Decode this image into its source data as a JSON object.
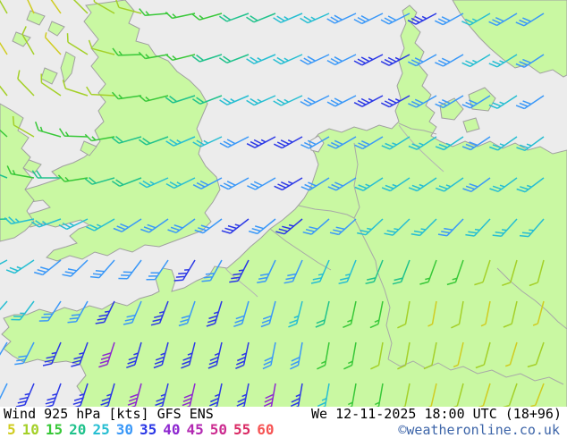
{
  "footer": {
    "title": "Wind 925 hPa [kts] GFS ENS",
    "datetime": "We 12-11-2025 18:00 UTC (18+96)",
    "copyright": "©weatheronline.co.uk",
    "copyright_color": "#3c64a8",
    "text_color": "#000000",
    "scale_values": [
      5,
      10,
      15,
      20,
      25,
      30,
      35,
      40,
      45,
      50,
      55,
      60
    ]
  },
  "map": {
    "sea_color": "#ececec",
    "land_color": "#c9f8a2",
    "coast_color": "#a0a0a0",
    "border_color": "#a8a8a8",
    "river_color": "#b4b4b4",
    "speed_colors": {
      "5": "#d0cc20",
      "10": "#a4d028",
      "15": "#38c838",
      "20": "#20c28c",
      "25": "#26bed2",
      "30": "#3a98f8",
      "35": "#2b38e6",
      "40": "#8e28d0",
      "45": "#b228b2",
      "50": "#cc2c90",
      "55": "#da2a64",
      "60": "#f65454"
    },
    "barb": {
      "staff_len": 26,
      "full_len": 10,
      "half_len": 5.5,
      "tick_step": 4.5,
      "tick_angle": 55,
      "stroke_width": 1.5
    },
    "cols": [
      8,
      38,
      68,
      98,
      128,
      158,
      188,
      218,
      248,
      278,
      308,
      338,
      368,
      398,
      428,
      458,
      488,
      518,
      548,
      578,
      608
    ],
    "rows": [
      15,
      61,
      107,
      153,
      199,
      245,
      291,
      337,
      383,
      429
    ],
    "speeds": [
      [
        10,
        5,
        5,
        10,
        10,
        10,
        15,
        15,
        15,
        20,
        20,
        25,
        25,
        30,
        30,
        30,
        35,
        30,
        25,
        30,
        30
      ],
      [
        5,
        10,
        5,
        10,
        10,
        15,
        15,
        15,
        20,
        20,
        25,
        25,
        30,
        30,
        35,
        35,
        30,
        30,
        25,
        25,
        30
      ],
      [
        10,
        10,
        10,
        10,
        10,
        15,
        15,
        20,
        20,
        25,
        25,
        25,
        30,
        30,
        35,
        35,
        30,
        30,
        30,
        25,
        30
      ],
      [
        15,
        10,
        15,
        15,
        15,
        20,
        20,
        25,
        25,
        30,
        35,
        35,
        30,
        30,
        30,
        25,
        25,
        25,
        30,
        25,
        25
      ],
      [
        20,
        15,
        20,
        15,
        20,
        20,
        25,
        25,
        30,
        30,
        30,
        35,
        30,
        30,
        25,
        25,
        25,
        25,
        30,
        25,
        25
      ],
      [
        20,
        25,
        25,
        25,
        25,
        30,
        30,
        30,
        30,
        35,
        30,
        35,
        30,
        30,
        25,
        25,
        25,
        30,
        25,
        25,
        25
      ],
      [
        25,
        25,
        30,
        30,
        30,
        30,
        30,
        35,
        30,
        35,
        30,
        30,
        25,
        25,
        20,
        20,
        15,
        15,
        10,
        10,
        10
      ],
      [
        25,
        25,
        30,
        30,
        35,
        30,
        35,
        30,
        35,
        30,
        30,
        25,
        20,
        15,
        15,
        10,
        5,
        10,
        5,
        10,
        5
      ],
      [
        30,
        30,
        35,
        35,
        40,
        35,
        35,
        35,
        35,
        35,
        30,
        30,
        15,
        15,
        10,
        10,
        10,
        5,
        10,
        5,
        10
      ],
      [
        30,
        35,
        35,
        35,
        35,
        40,
        35,
        40,
        35,
        35,
        40,
        35,
        25,
        15,
        15,
        10,
        5,
        10,
        5,
        10,
        5
      ]
    ],
    "dirs": [
      [
        240,
        245,
        235,
        225,
        210,
        195,
        175,
        168,
        164,
        160,
        158,
        157,
        156,
        155,
        154,
        153,
        152,
        151,
        150,
        149,
        148
      ],
      [
        238,
        240,
        228,
        212,
        195,
        178,
        170,
        166,
        162,
        159,
        157,
        156,
        155,
        154,
        153,
        152,
        151,
        150,
        149,
        148,
        147
      ],
      [
        232,
        226,
        214,
        198,
        183,
        172,
        166,
        162,
        159,
        157,
        156,
        155,
        154,
        153,
        152,
        151,
        150,
        149,
        148,
        147,
        146
      ],
      [
        222,
        210,
        196,
        182,
        170,
        164,
        160,
        157,
        155,
        153,
        152,
        151,
        150,
        150,
        149,
        148,
        147,
        146,
        146,
        145,
        144
      ],
      [
        202,
        190,
        180,
        171,
        164,
        159,
        156,
        154,
        152,
        151,
        150,
        149,
        148,
        148,
        147,
        146,
        146,
        145,
        144,
        144,
        143
      ],
      [
        178,
        168,
        160,
        154,
        150,
        147,
        145,
        144,
        143,
        142,
        141,
        140,
        139,
        138,
        137,
        136,
        135,
        134,
        133,
        132,
        131
      ],
      [
        152,
        146,
        141,
        136,
        131,
        127,
        124,
        121,
        119,
        117,
        115,
        114,
        113,
        112,
        112,
        111,
        110,
        109,
        108,
        106,
        105
      ],
      [
        131,
        127,
        123,
        119,
        116,
        113,
        111,
        109,
        107,
        106,
        105,
        104,
        103,
        102,
        101,
        100,
        100,
        100,
        101,
        103,
        105
      ],
      [
        121,
        117,
        113,
        110,
        108,
        106,
        105,
        104,
        103,
        102,
        101,
        100,
        100,
        100,
        100,
        100,
        101,
        103,
        105,
        107,
        109
      ],
      [
        116,
        113,
        110,
        108,
        106,
        105,
        104,
        103,
        102,
        101,
        100,
        100,
        100,
        100,
        100,
        101,
        103,
        105,
        107,
        109,
        111
      ]
    ]
  }
}
